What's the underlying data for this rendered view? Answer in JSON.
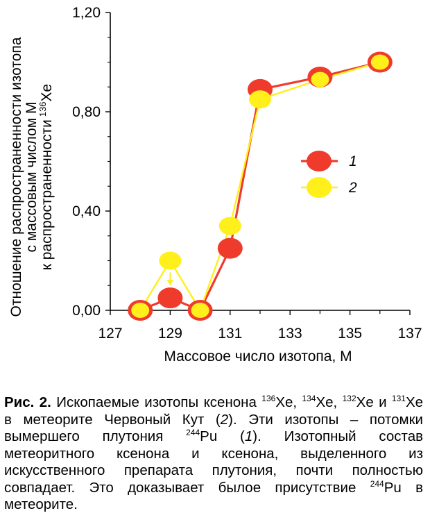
{
  "chart_data": {
    "type": "line",
    "title": "",
    "xlabel": "Массовое число изотопа, M",
    "ylabel_lines": [
      "Отношение распространенности изотопа",
      "с массовым числом M",
      "к распространенности"
    ],
    "ylabel_isotope_mass": "136",
    "ylabel_isotope_symbol": "Xe",
    "xlim": [
      127,
      137
    ],
    "ylim": [
      0,
      1.2
    ],
    "x_ticks": [
      127,
      129,
      131,
      133,
      135,
      137
    ],
    "x_tick_labels": [
      "127",
      "129",
      "131",
      "133",
      "135",
      "137"
    ],
    "y_ticks": [
      0,
      0.4,
      0.8,
      1.2
    ],
    "y_tick_labels": [
      "0,00",
      "0,40",
      "0,80",
      "1,20"
    ],
    "grid": false,
    "legend_position": "right-middle",
    "series": [
      {
        "name": "1",
        "color": "#ef3b2c",
        "x": [
          128,
          129,
          130,
          131,
          132,
          134,
          136
        ],
        "y": [
          0.0,
          0.05,
          0.0,
          0.25,
          0.89,
          0.94,
          1.0
        ]
      },
      {
        "name": "2",
        "color": "#ffef1a",
        "x": [
          128,
          129,
          130,
          131,
          132,
          134,
          136
        ],
        "y": [
          0.0,
          0.2,
          0.0,
          0.34,
          0.85,
          0.93,
          1.0
        ]
      }
    ],
    "annotations": [
      {
        "type": "arrow",
        "series": "2",
        "x": 129,
        "y_from": 0.2,
        "y_to": 0.05,
        "color": "#ffef1a"
      }
    ]
  },
  "caption": {
    "lead": "Рис. 2.",
    "parts": [
      {
        "t": " Ископаемые изотопы ксенона "
      },
      {
        "sup": "136"
      },
      {
        "t": "Xe, "
      },
      {
        "sup": "134"
      },
      {
        "t": "Xe, "
      },
      {
        "sup": "132"
      },
      {
        "t": "Xe и "
      },
      {
        "sup": "131"
      },
      {
        "t": "Xe в метеорите Червоный Кут ("
      },
      {
        "i": "2"
      },
      {
        "t": "). Эти изотопы – потомки вымершего плутония "
      },
      {
        "sup": "244"
      },
      {
        "t": "Pu ("
      },
      {
        "i": "1"
      },
      {
        "t": "). Изотопный состав метеоритного ксенона и ксенона, выделенного из искусственного препарата плутония, почти полностью совпадает. Это доказывает былое присутствие "
      },
      {
        "sup": "244"
      },
      {
        "t": "Pu в метеорите."
      }
    ]
  }
}
